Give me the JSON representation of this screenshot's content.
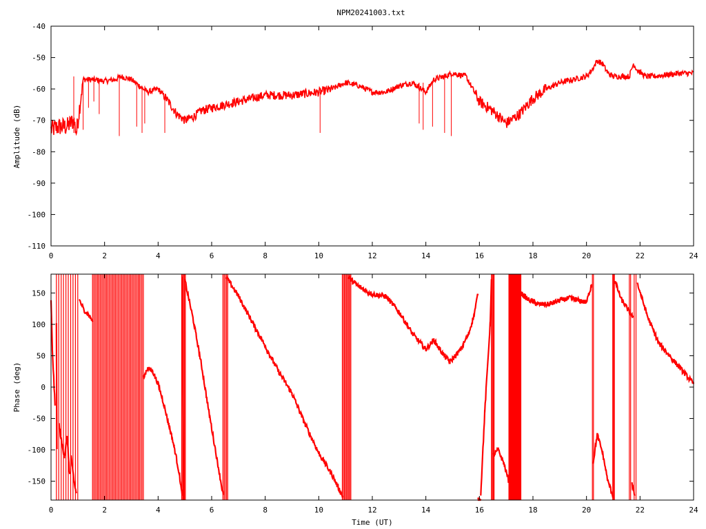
{
  "title": "NPM20241003.txt",
  "colors": {
    "trace": "#ff0000",
    "frame": "#000000",
    "background": "#ffffff"
  },
  "chart_data": [
    {
      "type": "line",
      "title": "NPM20241003.txt",
      "xlabel": "",
      "ylabel": "Amplitude (dB)",
      "xlim": [
        0,
        24
      ],
      "ylim": [
        -110,
        -40
      ],
      "xticks": [
        "0",
        "2",
        "4",
        "6",
        "8",
        "10",
        "12",
        "14",
        "16",
        "18",
        "20",
        "22",
        "24"
      ],
      "yticks": [
        "-40",
        "-50",
        "-60",
        "-70",
        "-80",
        "-90",
        "-100",
        "-110"
      ],
      "grid": false,
      "series": [
        {
          "color": "#ff0000",
          "x": [
            0.0,
            0.3,
            0.6,
            0.85,
            0.95,
            1.15,
            1.2,
            1.5,
            2.0,
            2.4,
            2.6,
            3.0,
            3.3,
            3.6,
            4.0,
            4.3,
            4.7,
            5.0,
            5.3,
            5.6,
            6.0,
            6.5,
            7.0,
            7.5,
            8.0,
            8.5,
            9.0,
            9.5,
            10.0,
            10.5,
            11.0,
            11.5,
            12.0,
            12.5,
            13.0,
            13.5,
            14.0,
            14.3,
            14.7,
            15.0,
            15.5,
            16.0,
            16.5,
            17.0,
            17.5,
            18.0,
            18.5,
            19.0,
            19.5,
            20.0,
            20.2,
            20.4,
            20.6,
            20.8,
            21.0,
            21.3,
            21.6,
            21.75,
            21.9,
            22.2,
            22.5,
            23.0,
            23.5,
            24.0
          ],
          "y": [
            -73,
            -72,
            -72,
            -70,
            -74,
            -60,
            -57,
            -57,
            -57.5,
            -57,
            -56,
            -57,
            -59,
            -61,
            -60,
            -63,
            -68,
            -70,
            -69,
            -67,
            -66,
            -65,
            -64,
            -63,
            -62,
            -62,
            -62,
            -61.5,
            -61,
            -60,
            -58,
            -59,
            -61,
            -61,
            -59,
            -58,
            -61,
            -57,
            -56,
            -55,
            -56,
            -64,
            -67,
            -71,
            -68,
            -63,
            -60,
            -58,
            -57,
            -56,
            -54,
            -51,
            -52,
            -55,
            -56,
            -56,
            -56,
            -52,
            -54,
            -56,
            -56,
            -55.5,
            -55,
            -55
          ]
        }
      ],
      "spikes": [
        {
          "x": 0.85,
          "y_top": -56,
          "y_bottom": -74
        },
        {
          "x": 1.2,
          "y_top": -57,
          "y_bottom": -73
        },
        {
          "x": 1.4,
          "y_top": -57,
          "y_bottom": -66
        },
        {
          "x": 1.6,
          "y_top": -57,
          "y_bottom": -64
        },
        {
          "x": 1.8,
          "y_top": -57,
          "y_bottom": -68
        },
        {
          "x": 2.55,
          "y_top": -56,
          "y_bottom": -75
        },
        {
          "x": 3.2,
          "y_top": -58,
          "y_bottom": -72
        },
        {
          "x": 3.4,
          "y_top": -59,
          "y_bottom": -74
        },
        {
          "x": 3.5,
          "y_top": -59,
          "y_bottom": -71
        },
        {
          "x": 4.25,
          "y_top": -63,
          "y_bottom": -74
        },
        {
          "x": 10.05,
          "y_top": -61,
          "y_bottom": -74
        },
        {
          "x": 13.75,
          "y_top": -58,
          "y_bottom": -71
        },
        {
          "x": 13.9,
          "y_top": -58,
          "y_bottom": -73
        },
        {
          "x": 14.25,
          "y_top": -58,
          "y_bottom": -72
        },
        {
          "x": 14.7,
          "y_top": -56,
          "y_bottom": -74
        },
        {
          "x": 14.95,
          "y_top": -55,
          "y_bottom": -75
        }
      ]
    },
    {
      "type": "line",
      "title": "",
      "xlabel": "Time (UT)",
      "ylabel": "Phase (deg)",
      "xlim": [
        0,
        24
      ],
      "ylim": [
        -180,
        180
      ],
      "xticks": [
        "0",
        "2",
        "4",
        "6",
        "8",
        "10",
        "12",
        "14",
        "16",
        "18",
        "20",
        "22",
        "24"
      ],
      "yticks": [
        "150",
        "100",
        "50",
        "0",
        "-50",
        "-100",
        "-150"
      ],
      "grid": false,
      "segments": [
        {
          "x": [
            0.0,
            0.05,
            0.15
          ],
          "y": [
            140,
            60,
            -30
          ]
        },
        {
          "x": [
            0.2,
            0.22
          ],
          "y": [
            100,
            -100
          ]
        },
        {
          "x": [
            0.3,
            0.4,
            0.5,
            0.6,
            0.7
          ],
          "y": [
            -60,
            -90,
            -110,
            -80,
            -140
          ]
        },
        {
          "x": [
            0.75,
            0.85,
            0.95
          ],
          "y": [
            -110,
            -150,
            -170
          ]
        },
        {
          "x": [
            1.05,
            1.2,
            1.4,
            1.55
          ],
          "y": [
            140,
            125,
            115,
            105
          ]
        },
        {
          "x": [
            3.45,
            3.6,
            3.8,
            4.0,
            4.2,
            4.4,
            4.6,
            4.8,
            4.9
          ],
          "y": [
            15,
            30,
            25,
            5,
            -25,
            -60,
            -95,
            -140,
            -175
          ]
        },
        {
          "x": [
            4.9,
            4.95
          ],
          "y": [
            180,
            -180
          ]
        },
        {
          "x": [
            5.0,
            5.3,
            5.6,
            5.9,
            6.2,
            6.4,
            6.45
          ],
          "y": [
            170,
            110,
            40,
            -40,
            -115,
            -165,
            -175
          ]
        },
        {
          "x": [
            6.55,
            7.0,
            7.5,
            8.0,
            8.5,
            9.0,
            9.5,
            10.0,
            10.5,
            10.9
          ],
          "y": [
            175,
            145,
            105,
            65,
            25,
            -10,
            -60,
            -105,
            -140,
            -175
          ]
        },
        {
          "x": [
            11.1,
            11.5,
            12.0,
            12.5,
            13.0,
            13.5,
            14.0,
            14.3,
            14.6,
            14.9,
            15.3,
            15.6,
            15.8,
            15.95
          ],
          "y": [
            175,
            160,
            148,
            145,
            120,
            85,
            60,
            75,
            55,
            40,
            60,
            85,
            115,
            150
          ]
        },
        {
          "x": [
            15.95,
            16.05
          ],
          "y": [
            -180,
            -180
          ]
        },
        {
          "x": [
            16.05,
            16.2,
            16.4,
            16.45
          ],
          "y": [
            -170,
            -40,
            100,
            170
          ]
        },
        {
          "x": [
            16.5,
            16.7,
            16.9,
            17.1
          ],
          "y": [
            -110,
            -100,
            -120,
            -150
          ]
        },
        {
          "x": [
            17.55,
            17.8,
            18.2,
            18.6,
            19.0,
            19.4,
            19.7,
            20.0,
            20.1,
            20.2
          ],
          "y": [
            150,
            140,
            132,
            132,
            138,
            142,
            138,
            135,
            150,
            165
          ]
        },
        {
          "x": [
            20.25,
            20.4,
            20.6,
            20.8,
            21.0
          ],
          "y": [
            -120,
            -75,
            -105,
            -150,
            -175
          ]
        },
        {
          "x": [
            21.05,
            21.3,
            21.6,
            21.75
          ],
          "y": [
            170,
            140,
            120,
            110
          ]
        },
        {
          "x": [
            21.7,
            21.8
          ],
          "y": [
            -155,
            -170
          ]
        },
        {
          "x": [
            21.9,
            22.3,
            22.7,
            23.1,
            23.5,
            23.8,
            24.0
          ],
          "y": [
            165,
            110,
            70,
            50,
            30,
            15,
            5
          ]
        }
      ],
      "bands": [
        {
          "x0": 0.2,
          "x1": 1.0,
          "density": 9
        },
        {
          "x0": 1.55,
          "x1": 3.45,
          "density": 40
        },
        {
          "x0": 4.88,
          "x1": 5.02,
          "density": 4
        },
        {
          "x0": 6.42,
          "x1": 6.6,
          "density": 4
        },
        {
          "x0": 10.88,
          "x1": 11.2,
          "density": 8
        },
        {
          "x0": 16.45,
          "x1": 16.55,
          "density": 3
        },
        {
          "x0": 17.1,
          "x1": 17.55,
          "density": 30
        },
        {
          "x0": 20.22,
          "x1": 20.26,
          "density": 1
        },
        {
          "x0": 20.98,
          "x1": 21.04,
          "density": 2
        },
        {
          "x0": 21.6,
          "x1": 21.65,
          "density": 1
        },
        {
          "x0": 21.78,
          "x1": 21.85,
          "density": 1
        }
      ]
    }
  ]
}
